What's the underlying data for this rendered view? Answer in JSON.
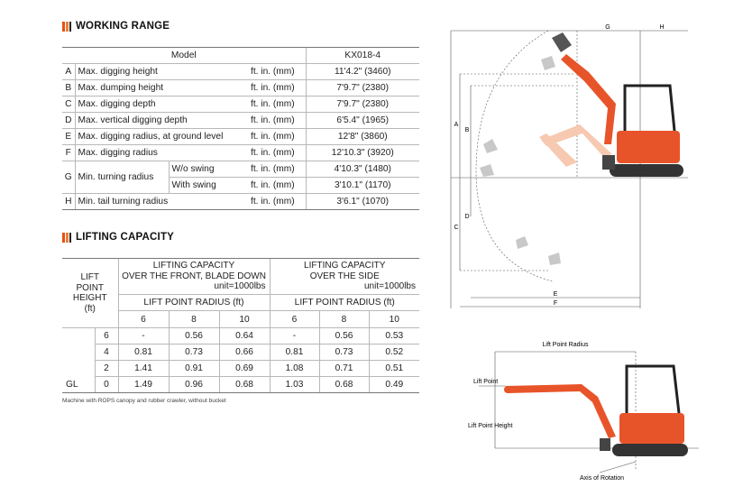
{
  "working_range": {
    "title": "WORKING RANGE",
    "header": {
      "model_label": "Model",
      "model_value": "KX018-4"
    },
    "rows": [
      {
        "letter": "A",
        "label": "Max. digging height",
        "unit": "ft. in. (mm)",
        "value": "11'4.2\" (3460)"
      },
      {
        "letter": "B",
        "label": "Max. dumping height",
        "unit": "ft. in. (mm)",
        "value": "7'9.7\" (2380)"
      },
      {
        "letter": "C",
        "label": "Max. digging depth",
        "unit": "ft. in. (mm)",
        "value": "7'9.7\" (2380)"
      },
      {
        "letter": "D",
        "label": "Max. vertical digging depth",
        "unit": "ft. in. (mm)",
        "value": "6'5.4\" (1965)"
      },
      {
        "letter": "E",
        "label": "Max. digging radius, at ground level",
        "unit": "ft. in. (mm)",
        "value": "12'8\" (3860)"
      },
      {
        "letter": "F",
        "label": "Max. digging radius",
        "unit": "ft. in. (mm)",
        "value": "12'10.3\" (3920)"
      }
    ],
    "turning": {
      "letter": "G",
      "label": "Min. turning radius",
      "rows": [
        {
          "sub": "W/o swing",
          "unit": "ft. in. (mm)",
          "value": "4'10.3\" (1480)"
        },
        {
          "sub": "With swing",
          "unit": "ft. in. (mm)",
          "value": "3'10.1\" (1170)"
        }
      ]
    },
    "tail": {
      "letter": "H",
      "label": "Min. tail turning radius",
      "unit": "ft. in. (mm)",
      "value": "3'6.1\" (1070)"
    }
  },
  "lifting_capacity": {
    "title": "LIFTING CAPACITY",
    "lift_point_height": [
      "LIFT",
      "POINT",
      "HEIGHT",
      "(ft)"
    ],
    "front": {
      "line1": "LIFTING CAPACITY",
      "line2": "OVER THE FRONT, BLADE DOWN",
      "unit": "unit=1000lbs",
      "radius_label": "LIFT POINT RADIUS (ft)"
    },
    "side": {
      "line1": "LIFTING CAPACITY",
      "line2": "OVER THE SIDE",
      "unit": "unit=1000lbs",
      "radius_label": "LIFT POINT RADIUS (ft)"
    },
    "radii": [
      "6",
      "8",
      "10",
      "6",
      "8",
      "10"
    ],
    "gl_label": "GL",
    "rows": [
      {
        "height": "6",
        "values": [
          "-",
          "0.56",
          "0.64",
          "-",
          "0.56",
          "0.53"
        ]
      },
      {
        "height": "4",
        "values": [
          "0.81",
          "0.73",
          "0.66",
          "0.81",
          "0.73",
          "0.52"
        ]
      },
      {
        "height": "2",
        "values": [
          "1.41",
          "0.91",
          "0.69",
          "1.08",
          "0.71",
          "0.51"
        ]
      },
      {
        "height": "0",
        "values": [
          "1.49",
          "0.96",
          "0.68",
          "1.03",
          "0.68",
          "0.49"
        ]
      }
    ],
    "note": "Machine with ROPS canopy and rubber crawler, without bucket"
  },
  "diagram1": {
    "labels": {
      "A": "A",
      "B": "B",
      "C": "C",
      "D": "D",
      "E": "E",
      "F": "F",
      "G": "G",
      "H": "H"
    },
    "machine_color": "#e8542a"
  },
  "diagram2": {
    "lift_point_radius": "Lift Point Radius",
    "lift_point": "Lift Point",
    "lift_point_height": "Lift Point Height",
    "axis_of_rotation": "Axis of Rotation"
  },
  "colors": {
    "accent": "#e8500f",
    "accent_light": "#f07e3a"
  }
}
